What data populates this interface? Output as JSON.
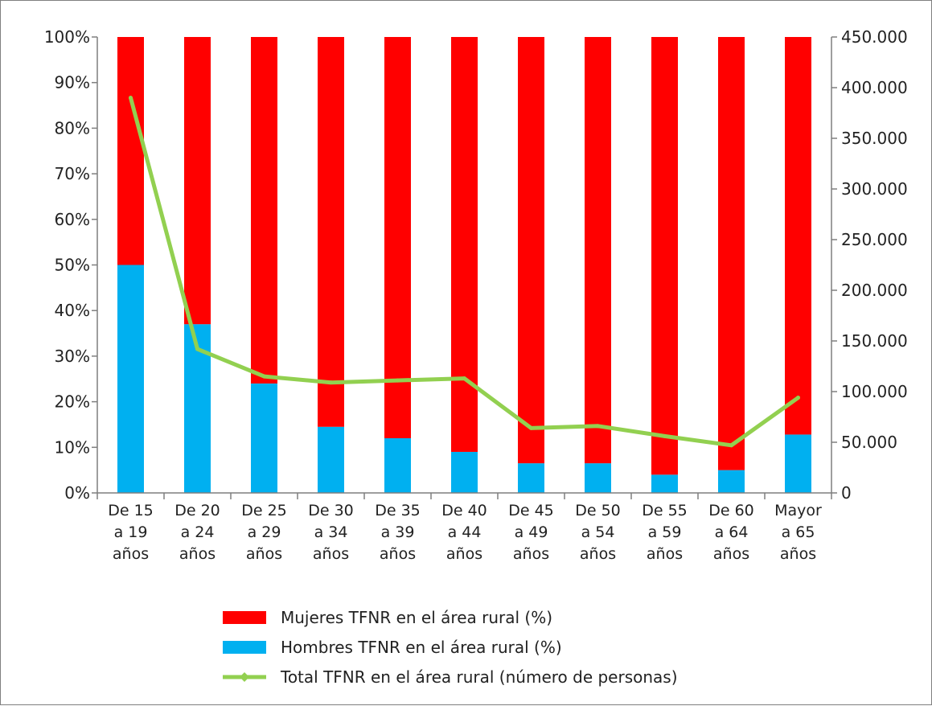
{
  "chart_data": {
    "type": "bar",
    "stacked": true,
    "categories": [
      [
        "De 15",
        "a 19",
        "años"
      ],
      [
        "De 20",
        "a 24",
        "años"
      ],
      [
        "De 25",
        "a 29",
        "años"
      ],
      [
        "De 30",
        "a 34",
        "años"
      ],
      [
        "De 35",
        "a 39",
        "años"
      ],
      [
        "De 40",
        "a 44",
        "años"
      ],
      [
        "De 45",
        "a 49",
        "años"
      ],
      [
        "De 50",
        "a 54",
        "años"
      ],
      [
        "De 55",
        "a 59",
        "años"
      ],
      [
        "De 60",
        "a 64",
        "años"
      ],
      [
        "Mayor",
        "a 65",
        "años"
      ]
    ],
    "series": [
      {
        "name": "Hombres TFNR en el área rural (%)",
        "type": "bar",
        "axis": "left",
        "color": "#00b0f0",
        "values": [
          50,
          37,
          24,
          14.5,
          12,
          9,
          6.5,
          6.5,
          4,
          5,
          12.8
        ]
      },
      {
        "name": "Mujeres TFNR en el área rural (%)",
        "type": "bar",
        "axis": "left",
        "color": "#ff0000",
        "values": [
          50,
          63,
          76,
          85.5,
          88,
          91,
          93.5,
          93.5,
          96,
          95,
          87.2
        ]
      },
      {
        "name": "Total TFNR en el área rural (número de personas)",
        "type": "line",
        "axis": "right",
        "color": "#92d050",
        "values": [
          390000,
          142000,
          115000,
          109000,
          111000,
          113000,
          64000,
          66000,
          56000,
          47000,
          94000
        ]
      }
    ],
    "legend_order": [
      1,
      0,
      2
    ],
    "y_left": {
      "ylim": [
        0,
        100
      ],
      "ticks": [
        0,
        10,
        20,
        30,
        40,
        50,
        60,
        70,
        80,
        90,
        100
      ],
      "tick_labels": [
        "0%",
        "10%",
        "20%",
        "30%",
        "40%",
        "50%",
        "60%",
        "70%",
        "80%",
        "90%",
        "100%"
      ]
    },
    "y_right": {
      "ylim": [
        0,
        450000
      ],
      "ticks": [
        0,
        50000,
        100000,
        150000,
        200000,
        250000,
        300000,
        350000,
        400000,
        450000
      ],
      "tick_labels": [
        "0",
        "50.000",
        "100.000",
        "150.000",
        "200.000",
        "250.000",
        "300.000",
        "350.000",
        "400.000",
        "450.000"
      ]
    },
    "grid": false,
    "legend_position": "bottom"
  }
}
